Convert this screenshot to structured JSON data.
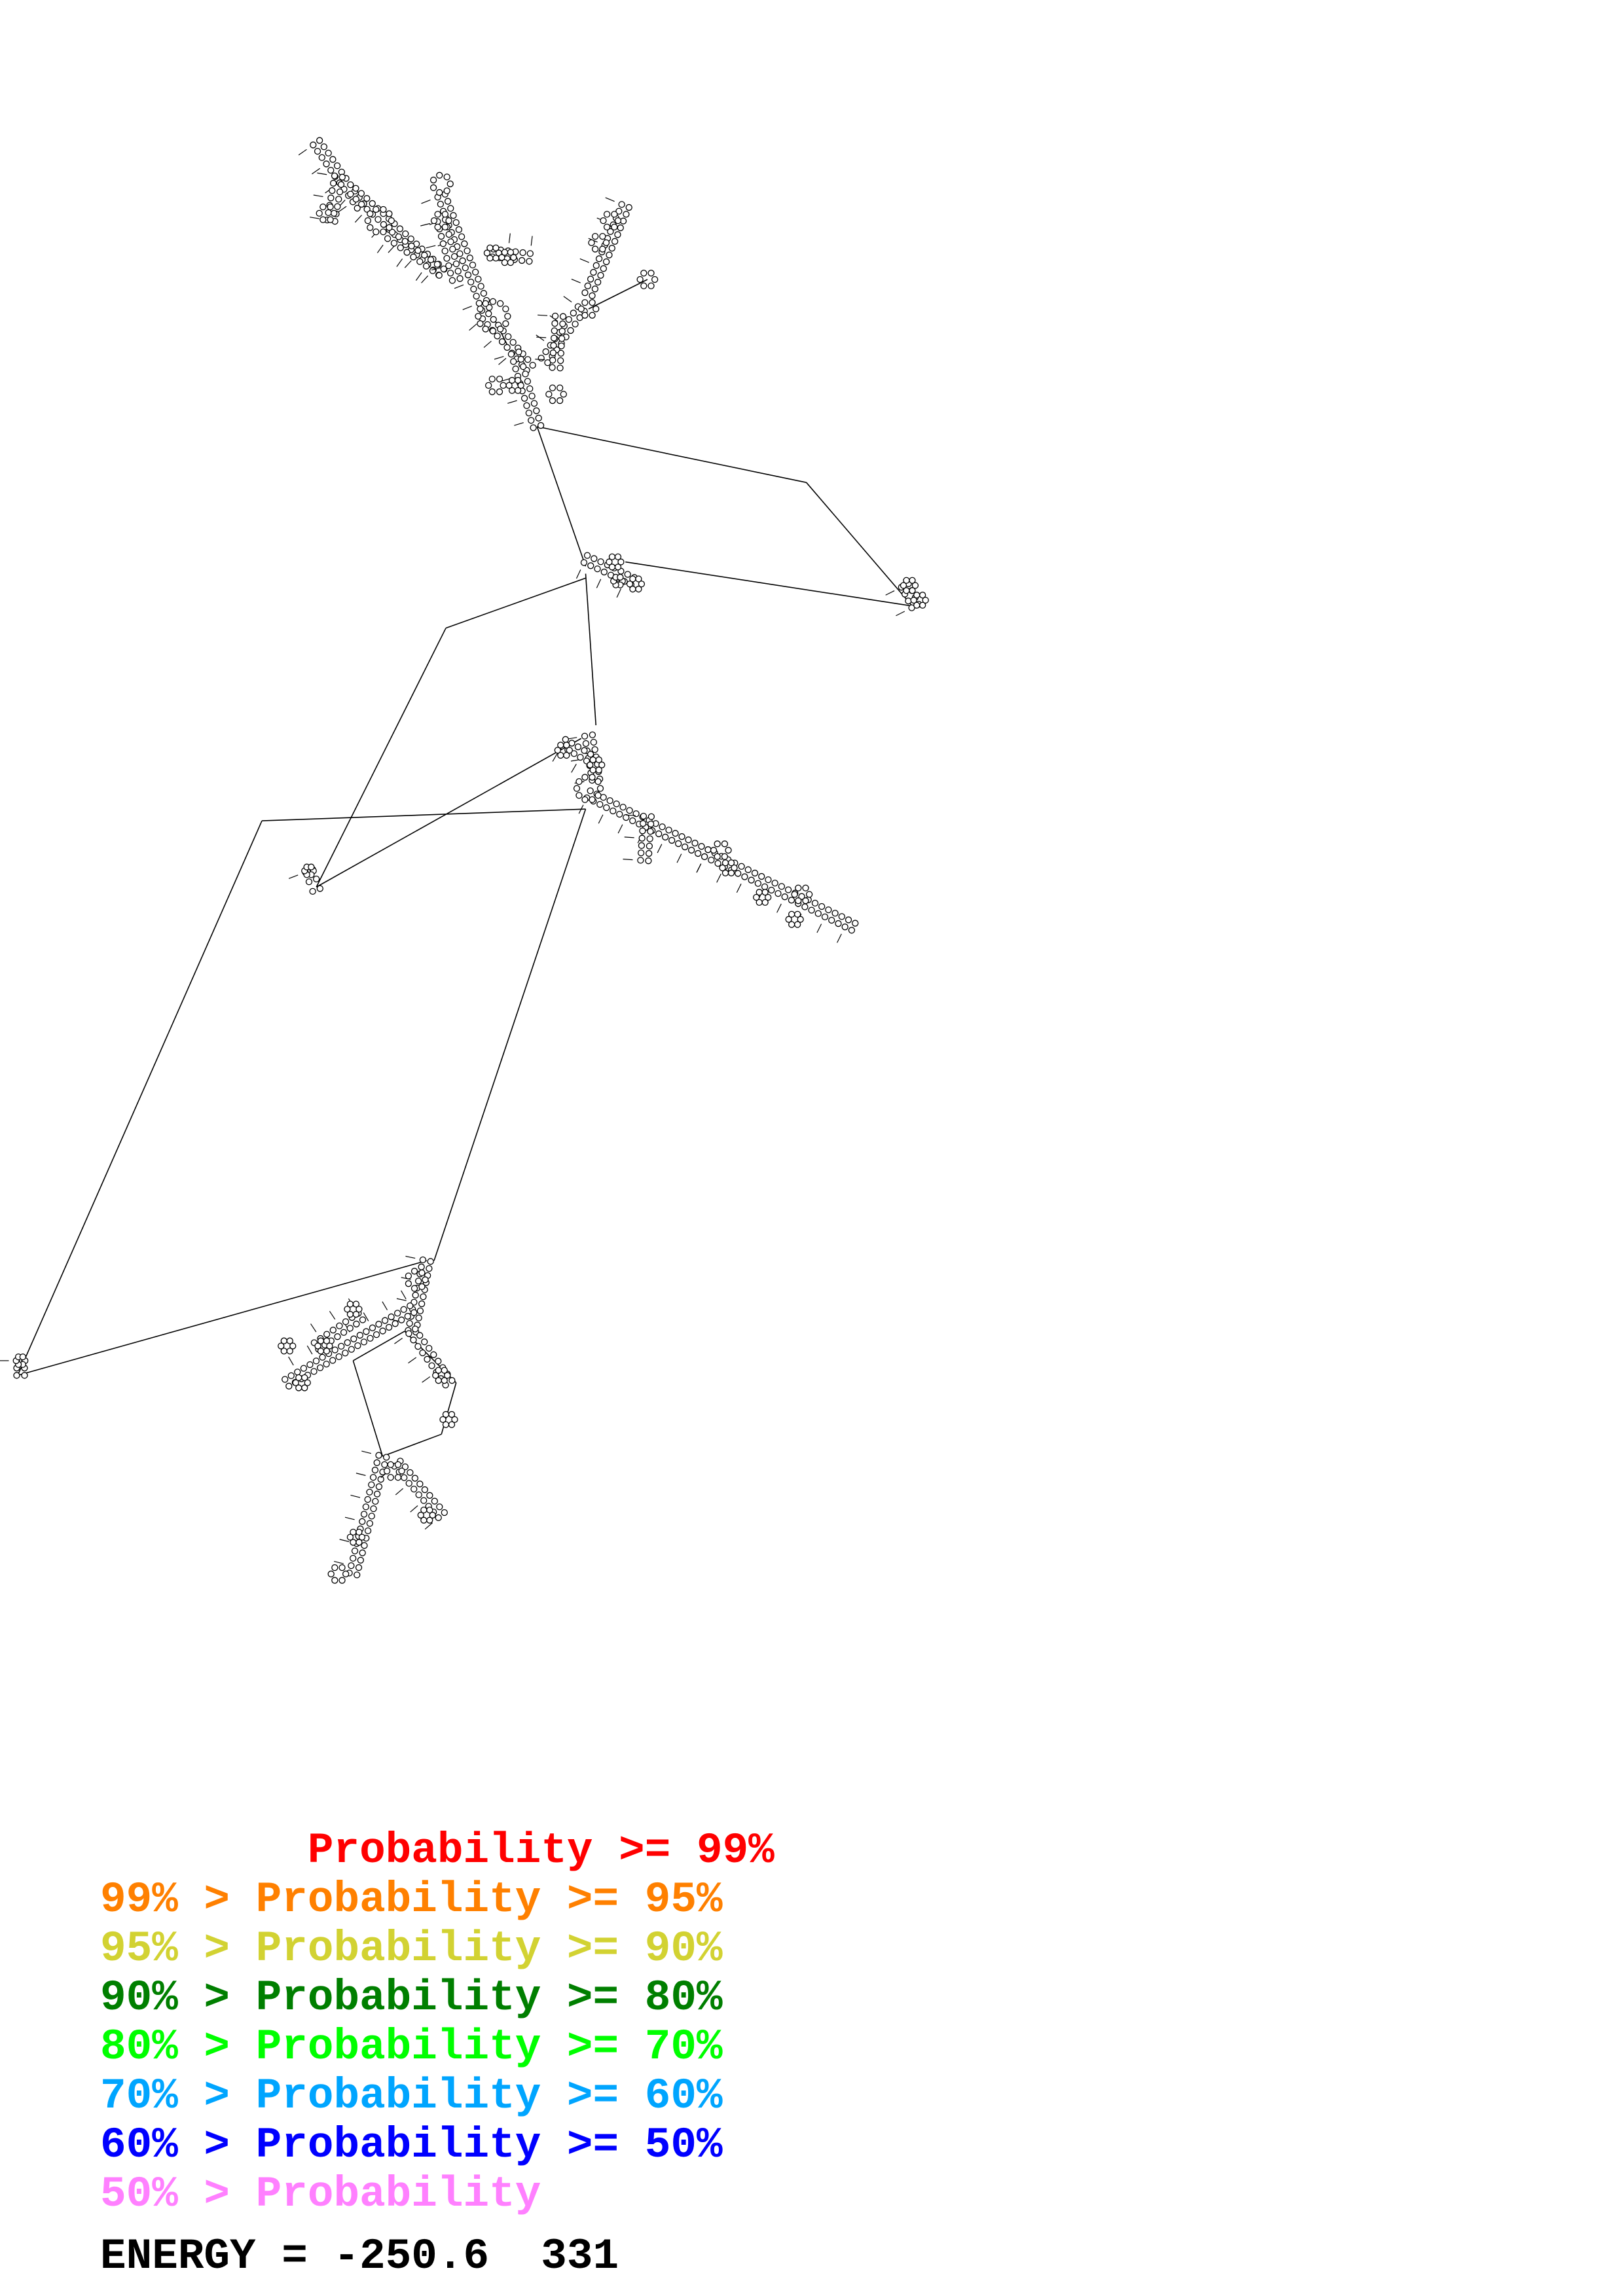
{
  "diagram": {
    "type": "RNA secondary structure",
    "line_color": "#000000"
  },
  "legend": [
    {
      "prefix": "        ",
      "label": "Probability >= 99%",
      "color": "#ff0000"
    },
    {
      "prefix": "99% > ",
      "label": "Probability >= 95%",
      "color": "#ff8000"
    },
    {
      "prefix": "95% > ",
      "label": "Probability >= 90%",
      "color": "#d2d232"
    },
    {
      "prefix": "90% > ",
      "label": "Probability >= 80%",
      "color": "#007f00"
    },
    {
      "prefix": "80% > ",
      "label": "Probability >= 70%",
      "color": "#00ff00"
    },
    {
      "prefix": "70% > ",
      "label": "Probability >= 60%",
      "color": "#00a5ff"
    },
    {
      "prefix": "60% > ",
      "label": "Probability >= 50%",
      "color": "#0000ff"
    },
    {
      "prefix": "50% > ",
      "label": "Probability",
      "color": "#ff80ff"
    }
  ],
  "energy": "ENERGY = -250.6  331"
}
